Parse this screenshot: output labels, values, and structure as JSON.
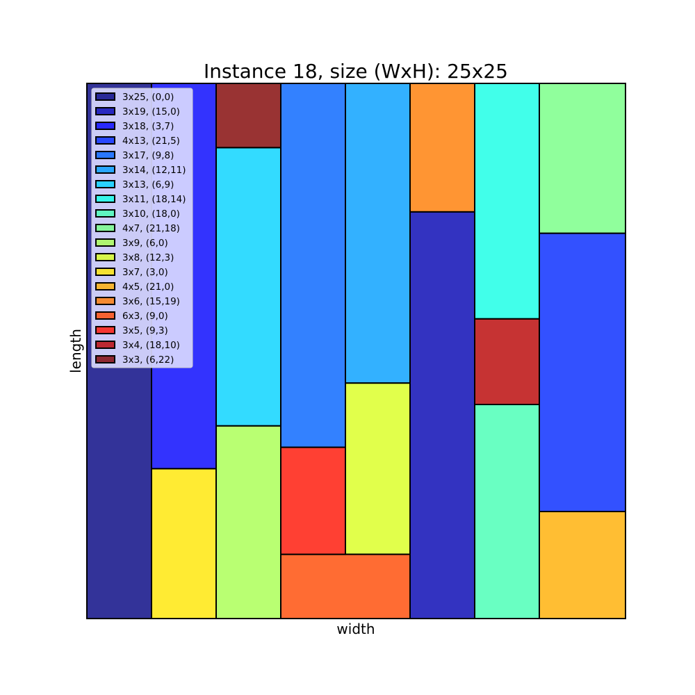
{
  "chart_data": {
    "type": "packing",
    "title": "Instance 18, size (WxH): 25x25",
    "xlabel": "width",
    "ylabel": "length",
    "xlim": [
      0,
      25
    ],
    "ylim": [
      0,
      25
    ],
    "grid": false,
    "legend_position": "top-left",
    "rectangles": [
      {
        "label": "3x25, (0,0)",
        "x": 0,
        "y": 0,
        "w": 3,
        "h": 25,
        "color": "#000080"
      },
      {
        "label": "3x19, (15,0)",
        "x": 15,
        "y": 0,
        "w": 3,
        "h": 19,
        "color": "#0000b2"
      },
      {
        "label": "3x18, (3,7)",
        "x": 3,
        "y": 7,
        "w": 3,
        "h": 18,
        "color": "#0000fe"
      },
      {
        "label": "4x13, (21,5)",
        "x": 21,
        "y": 5,
        "w": 4,
        "h": 13,
        "color": "#0026ff"
      },
      {
        "label": "3x17, (9,8)",
        "x": 9,
        "y": 8,
        "w": 3,
        "h": 17,
        "color": "#0062ff"
      },
      {
        "label": "3x14, (12,11)",
        "x": 12,
        "y": 11,
        "w": 3,
        "h": 14,
        "color": "#009eff"
      },
      {
        "label": "3x13, (6,9)",
        "x": 6,
        "y": 9,
        "w": 3,
        "h": 13,
        "color": "#00d2ff"
      },
      {
        "label": "3x11, (18,14)",
        "x": 18,
        "y": 14,
        "w": 3,
        "h": 11,
        "color": "#12ffe5"
      },
      {
        "label": "3x10, (18,0)",
        "x": 18,
        "y": 0,
        "w": 3,
        "h": 10,
        "color": "#44ffb3"
      },
      {
        "label": "4x7, (21,18)",
        "x": 21,
        "y": 18,
        "w": 4,
        "h": 7,
        "color": "#74ff83"
      },
      {
        "label": "3x9, (6,0)",
        "x": 6,
        "y": 0,
        "w": 3,
        "h": 9,
        "color": "#a8ff4f"
      },
      {
        "label": "3x8, (12,3)",
        "x": 12,
        "y": 3,
        "w": 3,
        "h": 8,
        "color": "#d9ff1e"
      },
      {
        "label": "3x7, (3,0)",
        "x": 3,
        "y": 0,
        "w": 3,
        "h": 7,
        "color": "#ffe600"
      },
      {
        "label": "4x5, (21,0)",
        "x": 21,
        "y": 0,
        "w": 4,
        "h": 5,
        "color": "#ffae00"
      },
      {
        "label": "3x6, (15,19)",
        "x": 15,
        "y": 19,
        "w": 3,
        "h": 6,
        "color": "#ff7a00"
      },
      {
        "label": "6x3, (9,0)",
        "x": 9,
        "y": 0,
        "w": 6,
        "h": 3,
        "color": "#ff4700"
      },
      {
        "label": "3x5, (9,3)",
        "x": 9,
        "y": 3,
        "w": 3,
        "h": 5,
        "color": "#ff1000"
      },
      {
        "label": "3x4, (18,10)",
        "x": 18,
        "y": 10,
        "w": 3,
        "h": 4,
        "color": "#b80000"
      },
      {
        "label": "3x3, (6,22)",
        "x": 6,
        "y": 22,
        "w": 3,
        "h": 3,
        "color": "#800000"
      }
    ]
  }
}
